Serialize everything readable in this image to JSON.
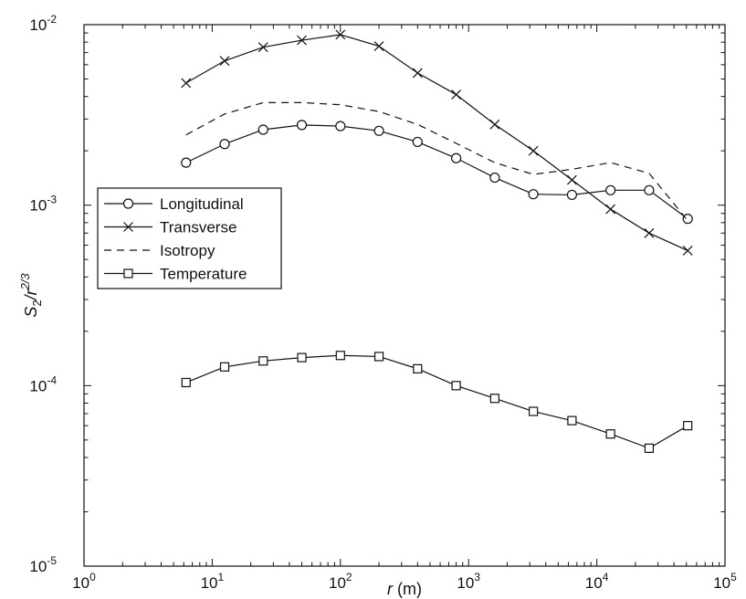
{
  "chart_data": {
    "type": "line",
    "title": "",
    "xlabel": "r (m)",
    "xlabel_parts": {
      "var": "r",
      "unit": " (m)"
    },
    "ylabel": "S2/r2/3",
    "ylabel_parts": {
      "base": "S",
      "sub": "2",
      "slash": "/r",
      "sup": "2/3"
    },
    "xscale": "log",
    "yscale": "log",
    "xlim": [
      1,
      100000
    ],
    "ylim": [
      1e-05,
      0.01
    ],
    "grid": false,
    "legend_position": "center-left",
    "x_ticks": [
      {
        "value": 1,
        "base": "10",
        "exp": "0"
      },
      {
        "value": 10,
        "base": "10",
        "exp": "1"
      },
      {
        "value": 100,
        "base": "10",
        "exp": "2"
      },
      {
        "value": 1000,
        "base": "10",
        "exp": "3"
      },
      {
        "value": 10000,
        "base": "10",
        "exp": "4"
      },
      {
        "value": 100000,
        "base": "10",
        "exp": "5"
      }
    ],
    "y_ticks": [
      {
        "value": 1e-05,
        "base": "10",
        "exp": "-5"
      },
      {
        "value": 0.0001,
        "base": "10",
        "exp": "-4"
      },
      {
        "value": 0.001,
        "base": "10",
        "exp": "-3"
      },
      {
        "value": 0.01,
        "base": "10",
        "exp": "-2"
      }
    ],
    "series": [
      {
        "name": "Longitudinal",
        "marker": "circle",
        "dash": "solid",
        "x": [
          6.25,
          12.5,
          25,
          50,
          100,
          200,
          400,
          800,
          1600,
          3200,
          6400,
          12800,
          25600,
          51200
        ],
        "y": [
          0.00172,
          0.00218,
          0.00262,
          0.00278,
          0.00274,
          0.00258,
          0.00224,
          0.00182,
          0.00142,
          0.00115,
          0.00114,
          0.00121,
          0.00121,
          0.00084
        ]
      },
      {
        "name": "Transverse",
        "marker": "x",
        "dash": "solid",
        "x": [
          6.25,
          12.5,
          25,
          50,
          100,
          200,
          400,
          800,
          1600,
          3200,
          6400,
          12800,
          25600,
          51200
        ],
        "y": [
          0.00475,
          0.0063,
          0.0075,
          0.0082,
          0.0088,
          0.0076,
          0.0054,
          0.0041,
          0.0028,
          0.002,
          0.00138,
          0.00095,
          0.0007,
          0.00056
        ]
      },
      {
        "name": "Isotropy",
        "marker": "none",
        "dash": "dashed",
        "x": [
          6.25,
          12.5,
          25,
          50,
          100,
          200,
          400,
          800,
          1600,
          3200,
          6400,
          12800,
          25600,
          51200
        ],
        "y": [
          0.00245,
          0.0032,
          0.0037,
          0.0037,
          0.0036,
          0.0033,
          0.0028,
          0.0022,
          0.00172,
          0.00148,
          0.00158,
          0.00172,
          0.0015,
          0.00082
        ]
      },
      {
        "name": "Temperature",
        "marker": "square",
        "dash": "solid",
        "x": [
          6.25,
          12.5,
          25,
          50,
          100,
          200,
          400,
          800,
          1600,
          3200,
          6400,
          12800,
          25600,
          51200
        ],
        "y": [
          0.000104,
          0.000127,
          0.000137,
          0.000143,
          0.000147,
          0.000145,
          0.000124,
          0.0001,
          8.5e-05,
          7.2e-05,
          6.4e-05,
          5.4e-05,
          4.5e-05,
          6e-05
        ]
      }
    ]
  }
}
